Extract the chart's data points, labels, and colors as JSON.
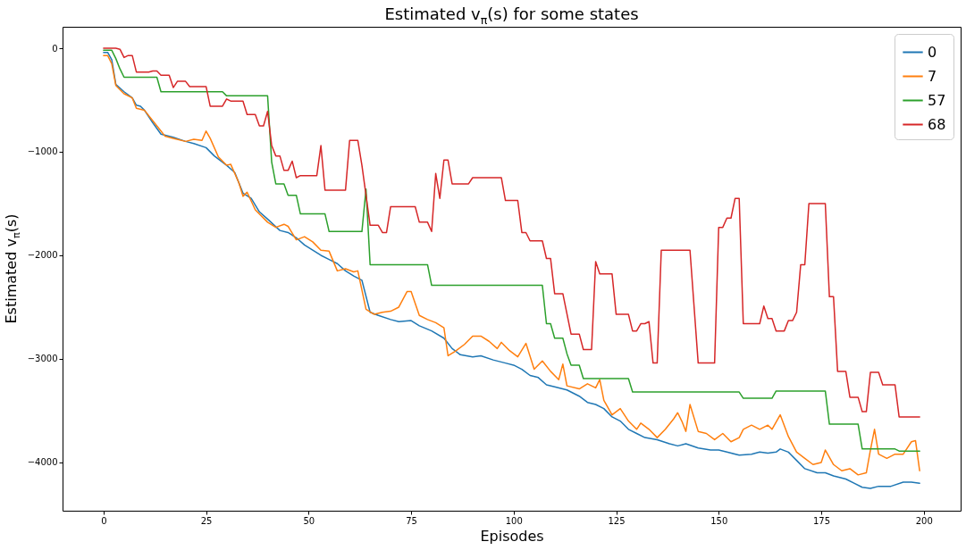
{
  "chart_data": {
    "type": "line",
    "title": "Estimated v$_{π}$(s) for some states",
    "xlabel": "Episodes",
    "ylabel": "Estimated v$_{π}$(s)",
    "xlim": [
      -10,
      209
    ],
    "xticks": [
      0,
      25,
      50,
      75,
      100,
      125,
      150,
      175,
      200
    ],
    "ylim": [
      -4466,
      207
    ],
    "yticks": [
      0,
      {
        "value": -1000,
        "label": "−1000"
      },
      {
        "value": -2000,
        "label": "−2000"
      },
      {
        "value": -3000,
        "label": "−3000"
      },
      {
        "value": -4000,
        "label": "−4000"
      }
    ],
    "legend": "top right",
    "series": [
      {
        "name": "0",
        "color": "#1f77b4",
        "x": [
          0,
          1,
          2,
          3,
          5,
          7,
          8,
          9,
          10,
          12,
          14,
          17,
          20,
          22,
          25,
          27,
          30,
          32,
          34,
          36,
          38,
          40,
          43,
          45,
          47,
          49,
          51,
          53,
          55,
          57,
          59,
          61,
          63,
          65,
          67,
          70,
          72,
          75,
          77,
          80,
          83,
          85,
          87,
          90,
          92,
          95,
          98,
          100,
          102,
          104,
          106,
          108,
          110,
          113,
          116,
          118,
          120,
          122,
          124,
          126,
          128,
          130,
          132,
          135,
          138,
          140,
          142,
          145,
          148,
          150,
          152,
          155,
          158,
          160,
          162,
          164,
          165,
          167,
          169,
          171,
          174,
          176,
          178,
          181,
          183,
          185,
          187,
          189,
          192,
          195,
          197,
          199
        ],
        "values": [
          -40,
          -40,
          -110,
          -350,
          -420,
          -480,
          -550,
          -560,
          -600,
          -720,
          -830,
          -860,
          -900,
          -920,
          -960,
          -1040,
          -1130,
          -1200,
          -1400,
          -1450,
          -1580,
          -1650,
          -1760,
          -1780,
          -1830,
          -1900,
          -1950,
          -2000,
          -2040,
          -2080,
          -2150,
          -2200,
          -2240,
          -2550,
          -2580,
          -2620,
          -2640,
          -2630,
          -2680,
          -2730,
          -2800,
          -2900,
          -2960,
          -2980,
          -2970,
          -3010,
          -3040,
          -3060,
          -3100,
          -3160,
          -3180,
          -3250,
          -3270,
          -3300,
          -3360,
          -3420,
          -3440,
          -3480,
          -3560,
          -3600,
          -3680,
          -3720,
          -3760,
          -3780,
          -3820,
          -3840,
          -3820,
          -3860,
          -3880,
          -3880,
          -3900,
          -3930,
          -3920,
          -3900,
          -3910,
          -3900,
          -3870,
          -3900,
          -3980,
          -4060,
          -4100,
          -4100,
          -4130,
          -4160,
          -4200,
          -4240,
          -4250,
          -4230,
          -4230,
          -4190,
          -4190,
          -4200
        ]
      },
      {
        "name": "7",
        "color": "#ff7f0e",
        "x": [
          0,
          1,
          2,
          3,
          5,
          7,
          8,
          10,
          12,
          14,
          15,
          17,
          20,
          22,
          24,
          25,
          26,
          28,
          30,
          31,
          33,
          34,
          35,
          37,
          40,
          42,
          44,
          45,
          47,
          49,
          51,
          53,
          55,
          57,
          59,
          61,
          62,
          64,
          66,
          68,
          70,
          72,
          74,
          75,
          77,
          79,
          81,
          83,
          84,
          86,
          88,
          90,
          92,
          94,
          96,
          97,
          99,
          101,
          103,
          105,
          107,
          109,
          111,
          112,
          113,
          116,
          118,
          120,
          121,
          122,
          124,
          126,
          128,
          130,
          131,
          133,
          135,
          137,
          139,
          140,
          141,
          142,
          143,
          145,
          147,
          149,
          151,
          153,
          155,
          156,
          158,
          160,
          162,
          163,
          165,
          167,
          169,
          171,
          173,
          175,
          176,
          178,
          180,
          182,
          184,
          186,
          187,
          188,
          189,
          191,
          193,
          195,
          197,
          198,
          199
        ],
        "values": [
          -70,
          -70,
          -150,
          -360,
          -440,
          -480,
          -580,
          -600,
          -700,
          -800,
          -850,
          -870,
          -900,
          -880,
          -890,
          -800,
          -870,
          -1050,
          -1130,
          -1120,
          -1300,
          -1430,
          -1390,
          -1560,
          -1680,
          -1730,
          -1700,
          -1720,
          -1850,
          -1820,
          -1870,
          -1950,
          -1960,
          -2150,
          -2130,
          -2160,
          -2150,
          -2520,
          -2570,
          -2550,
          -2540,
          -2500,
          -2350,
          -2350,
          -2580,
          -2620,
          -2650,
          -2700,
          -2970,
          -2920,
          -2860,
          -2780,
          -2780,
          -2830,
          -2900,
          -2840,
          -2920,
          -2980,
          -2850,
          -3100,
          -3020,
          -3120,
          -3200,
          -3050,
          -3260,
          -3290,
          -3240,
          -3280,
          -3200,
          -3400,
          -3540,
          -3480,
          -3600,
          -3680,
          -3620,
          -3680,
          -3760,
          -3680,
          -3580,
          -3520,
          -3600,
          -3700,
          -3440,
          -3700,
          -3720,
          -3780,
          -3720,
          -3800,
          -3760,
          -3680,
          -3640,
          -3680,
          -3640,
          -3680,
          -3540,
          -3750,
          -3900,
          -3960,
          -4020,
          -4000,
          -3880,
          -4020,
          -4080,
          -4060,
          -4120,
          -4100,
          -3880,
          -3680,
          -3920,
          -3960,
          -3920,
          -3920,
          -3800,
          -3790,
          -4080
        ]
      },
      {
        "name": "57",
        "color": "#2ca02c",
        "x": [
          0,
          2,
          3,
          4,
          5,
          13,
          14,
          29,
          30,
          40,
          41,
          42,
          44,
          45,
          47,
          48,
          54,
          55,
          63,
          64,
          65,
          79,
          80,
          107,
          108,
          109,
          110,
          112,
          113,
          114,
          116,
          117,
          128,
          129,
          155,
          156,
          163,
          164,
          176,
          177,
          184,
          185,
          193,
          194,
          199
        ],
        "values": [
          -20,
          -20,
          -100,
          -200,
          -280,
          -280,
          -420,
          -420,
          -460,
          -460,
          -1100,
          -1310,
          -1310,
          -1420,
          -1420,
          -1600,
          -1600,
          -1770,
          -1770,
          -1360,
          -2090,
          -2090,
          -2290,
          -2290,
          -2660,
          -2660,
          -2800,
          -2800,
          -2950,
          -3060,
          -3060,
          -3190,
          -3190,
          -3320,
          -3320,
          -3380,
          -3380,
          -3310,
          -3310,
          -3630,
          -3630,
          -3870,
          -3870,
          -3890,
          -3890
        ]
      },
      {
        "name": "68",
        "color": "#d62728",
        "x": [
          0,
          3,
          4,
          5,
          6,
          7,
          8,
          11,
          12,
          13,
          14,
          16,
          17,
          18,
          20,
          21,
          25,
          26,
          29,
          30,
          31,
          34,
          35,
          37,
          38,
          39,
          40,
          41,
          42,
          43,
          44,
          45,
          46,
          47,
          48,
          52,
          53,
          54,
          59,
          60,
          62,
          63,
          65,
          67,
          68,
          69,
          70,
          76,
          77,
          79,
          80,
          81,
          82,
          83,
          84,
          85,
          89,
          90,
          97,
          98,
          101,
          102,
          103,
          104,
          107,
          108,
          109,
          110,
          112,
          114,
          116,
          117,
          119,
          120,
          121,
          124,
          125,
          128,
          129,
          130,
          131,
          132,
          133,
          134,
          135,
          136,
          143,
          145,
          149,
          150,
          151,
          152,
          153,
          154,
          155,
          156,
          160,
          161,
          162,
          163,
          164,
          166,
          167,
          168,
          169,
          170,
          171,
          172,
          176,
          177,
          178,
          179,
          181,
          182,
          184,
          185,
          186,
          187,
          189,
          190,
          193,
          194,
          199
        ],
        "values": [
          0,
          0,
          -10,
          -90,
          -70,
          -70,
          -230,
          -230,
          -220,
          -220,
          -260,
          -260,
          -380,
          -320,
          -320,
          -370,
          -370,
          -560,
          -560,
          -490,
          -510,
          -510,
          -640,
          -640,
          -750,
          -750,
          -610,
          -940,
          -1040,
          -1040,
          -1180,
          -1180,
          -1090,
          -1250,
          -1230,
          -1230,
          -940,
          -1370,
          -1370,
          -890,
          -890,
          -1130,
          -1710,
          -1710,
          -1780,
          -1780,
          -1530,
          -1530,
          -1680,
          -1680,
          -1770,
          -1210,
          -1450,
          -1080,
          -1080,
          -1310,
          -1310,
          -1250,
          -1250,
          -1470,
          -1470,
          -1780,
          -1780,
          -1860,
          -1860,
          -2030,
          -2030,
          -2370,
          -2370,
          -2760,
          -2760,
          -2910,
          -2910,
          -2060,
          -2180,
          -2180,
          -2570,
          -2570,
          -2730,
          -2730,
          -2660,
          -2660,
          -2640,
          -3040,
          -3040,
          -1950,
          -1950,
          -3040,
          -3040,
          -1730,
          -1730,
          -1640,
          -1640,
          -1450,
          -1450,
          -2660,
          -2660,
          -2490,
          -2610,
          -2610,
          -2730,
          -2730,
          -2630,
          -2630,
          -2550,
          -2090,
          -2090,
          -1500,
          -1500,
          -2400,
          -2400,
          -3120,
          -3120,
          -3370,
          -3370,
          -3510,
          -3510,
          -3130,
          -3130,
          -3250,
          -3250,
          -3560,
          -3560
        ]
      }
    ]
  }
}
